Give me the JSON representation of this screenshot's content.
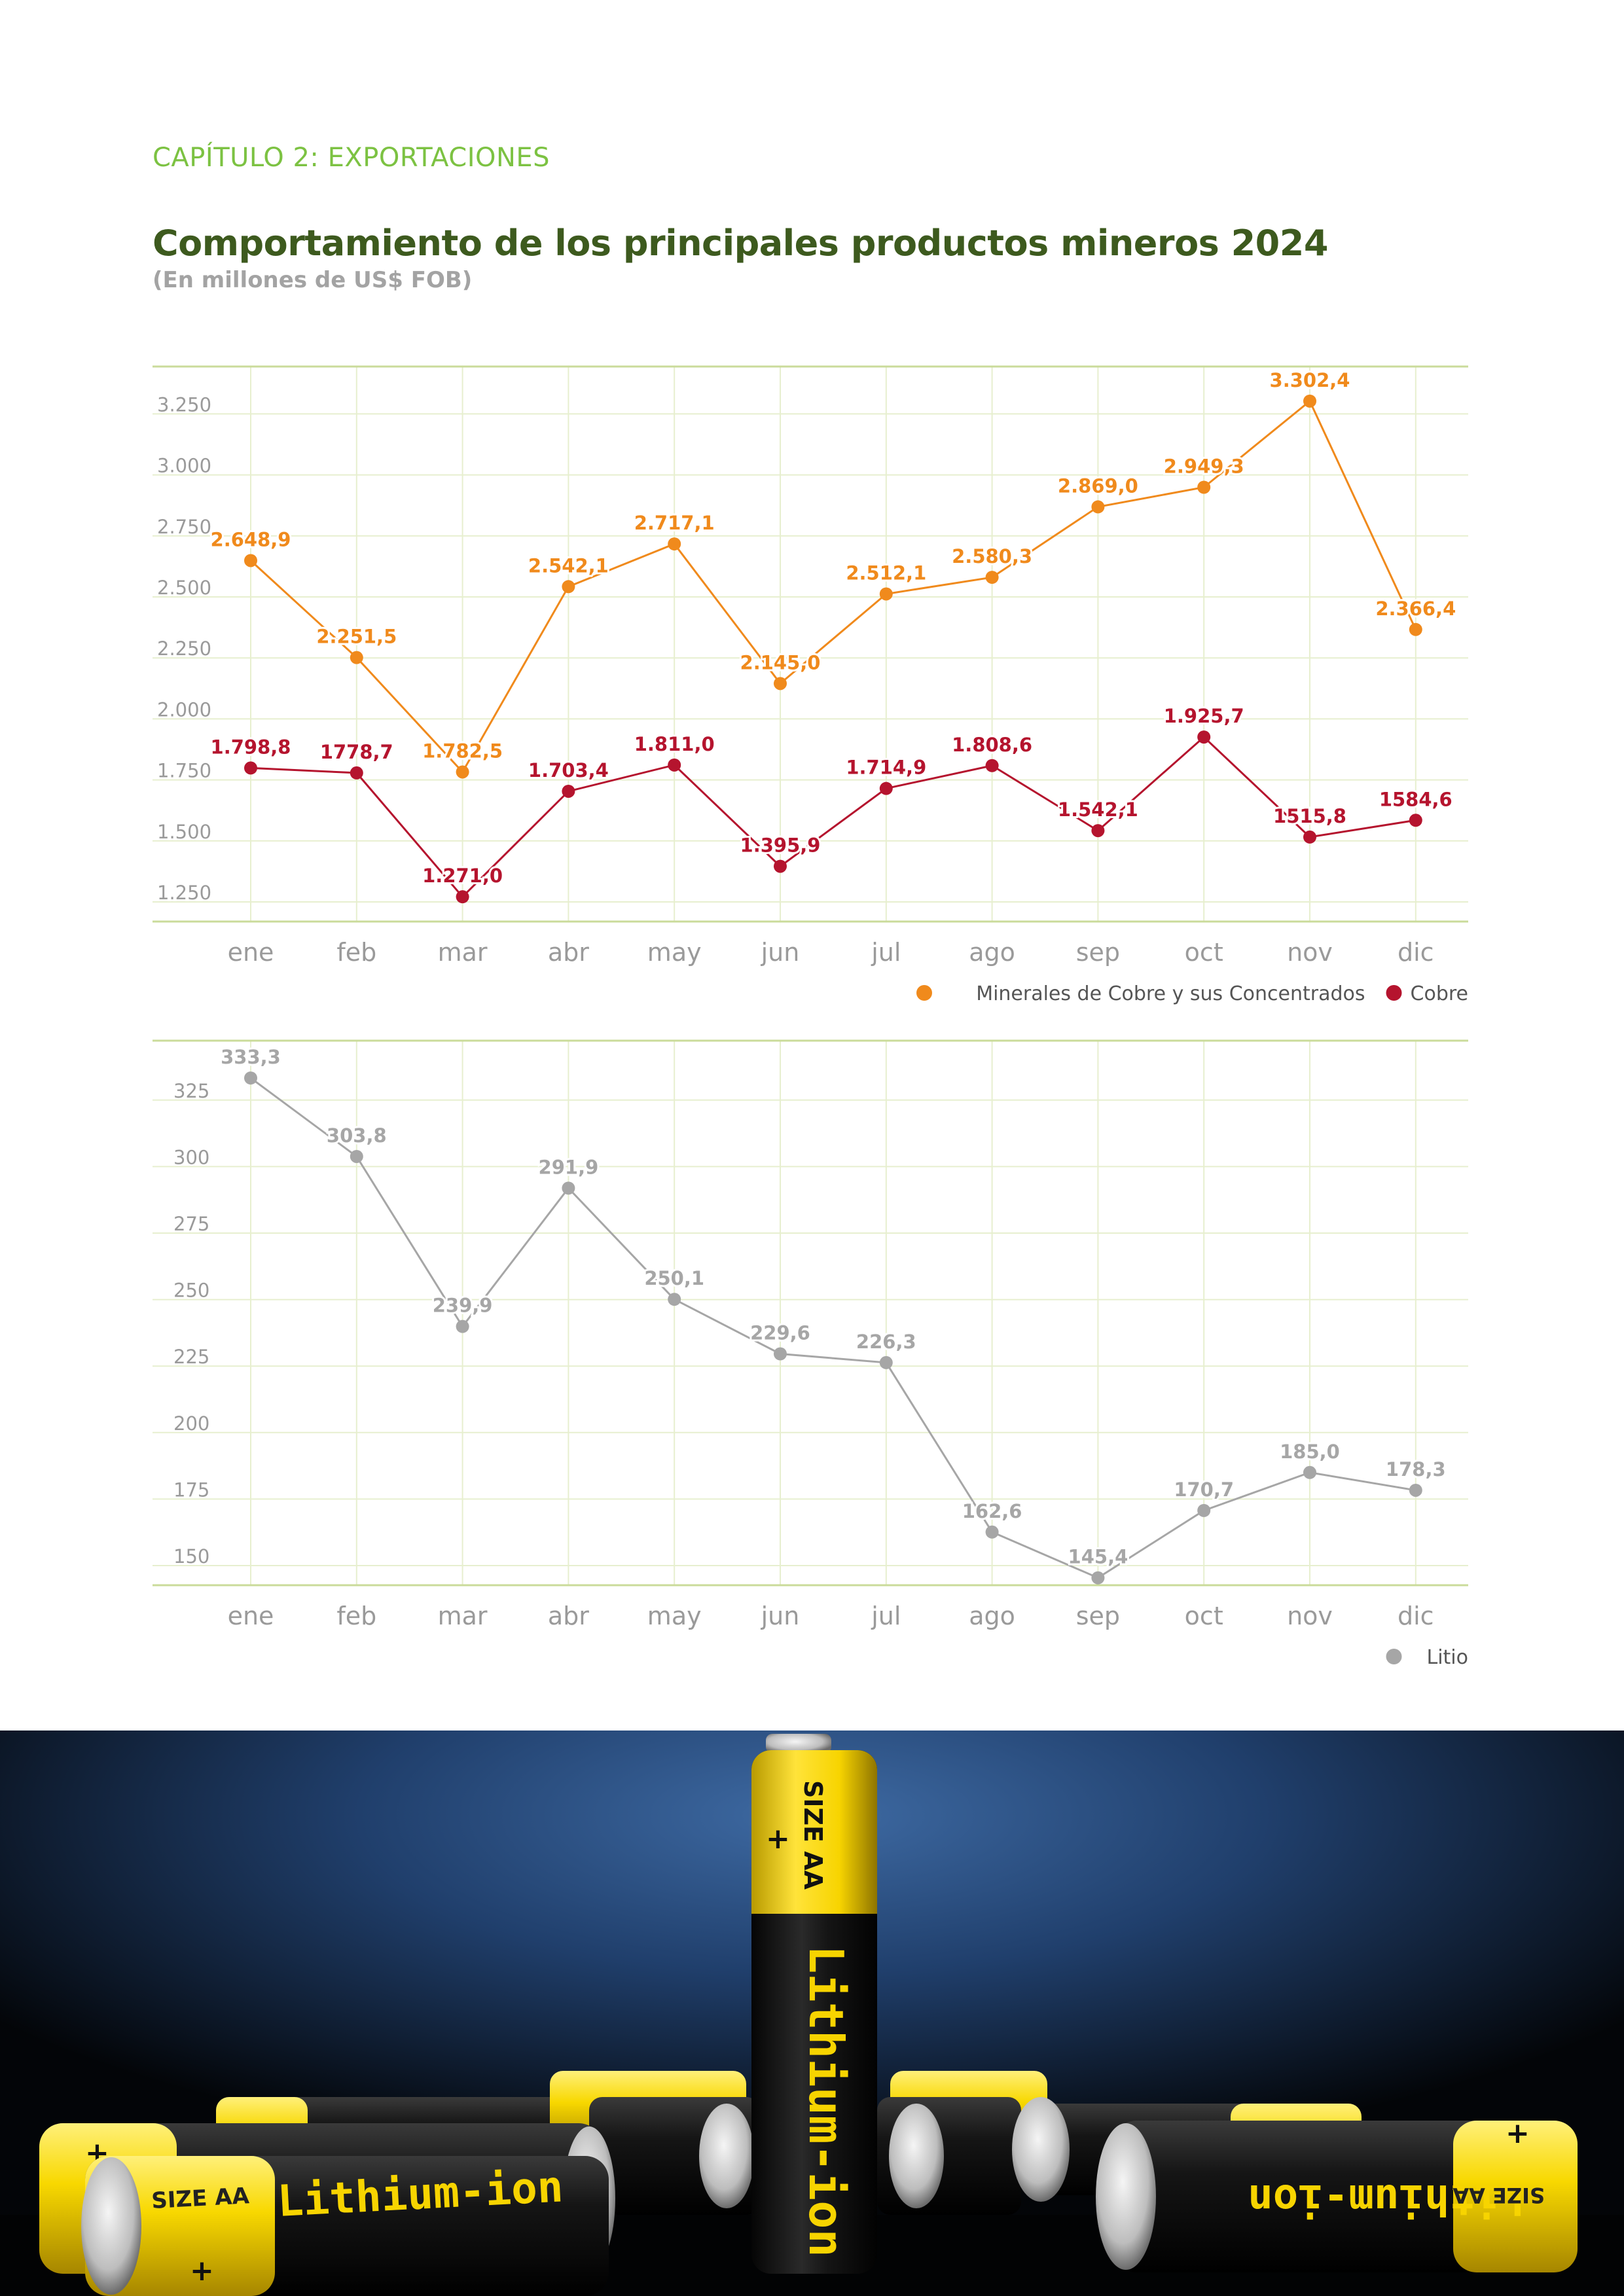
{
  "header": {
    "chapter": "CAPÍTULO 2: EXPORTACIONES",
    "title": "Comportamiento de los principales productos mineros 2024",
    "subtitle": "(En millones de US$ FOB)"
  },
  "colors": {
    "orange": "#f08a1c",
    "red": "#b5142e",
    "gray": "#a6a6a6",
    "grid": "#e7efcf",
    "axis": "#cadb9a"
  },
  "chart_data": [
    {
      "type": "line",
      "categories": [
        "ene",
        "feb",
        "mar",
        "abr",
        "may",
        "jun",
        "jul",
        "ago",
        "sep",
        "oct",
        "nov",
        "dic"
      ],
      "yticks": [
        "1.250",
        "1.500",
        "1.750",
        "2.000",
        "2.250",
        "2.500",
        "2.750",
        "3.000",
        "3.250"
      ],
      "ylim": [
        1175,
        3445
      ],
      "series": [
        {
          "name": "Minerales de Cobre y sus Concentrados",
          "color": "#f08a1c",
          "values": [
            2648.9,
            2251.5,
            1782.5,
            2542.1,
            2717.1,
            2145.0,
            2512.1,
            2580.3,
            2869.0,
            2949.3,
            3302.4,
            2366.4
          ],
          "labels": [
            "2.648,9",
            "2.251,5",
            "1.782,5",
            "2.542,1",
            "2.717,1",
            "2.145,0",
            "2.512,1",
            "2.580,3",
            "2.869,0",
            "2.949,3",
            "3.302,4",
            "2.366,4"
          ]
        },
        {
          "name": "Cobre",
          "color": "#b5142e",
          "values": [
            1798.8,
            1778.7,
            1271.0,
            1703.4,
            1811.0,
            1395.9,
            1714.9,
            1808.6,
            1542.1,
            1925.7,
            1515.8,
            1584.6
          ],
          "labels": [
            "1.798,8",
            "1778,7",
            "1.271,0",
            "1.703,4",
            "1.811,0",
            "1.395,9",
            "1.714,9",
            "1.808,6",
            "1.542,1",
            "1.925,7",
            "1515,8",
            "1584,6"
          ]
        }
      ],
      "legend": [
        "Minerales de Cobre y sus Concentrados",
        "Cobre"
      ],
      "legend_position": "bottom-right",
      "grid": true
    },
    {
      "type": "line",
      "categories": [
        "ene",
        "feb",
        "mar",
        "abr",
        "may",
        "jun",
        "jul",
        "ago",
        "sep",
        "oct",
        "nov",
        "dic"
      ],
      "yticks": [
        "150",
        "175",
        "200",
        "225",
        "250",
        "275",
        "300",
        "325"
      ],
      "ylim": [
        145,
        345
      ],
      "series": [
        {
          "name": "Litio",
          "color": "#a6a6a6",
          "values": [
            333.3,
            303.8,
            239.9,
            291.9,
            250.1,
            229.6,
            226.3,
            162.6,
            145.4,
            170.7,
            185.0,
            178.3
          ],
          "labels": [
            "333,3",
            "303,8",
            "239,9",
            "291,9",
            "250,1",
            "229,6",
            "226,3",
            "162,6",
            "145,4",
            "170,7",
            "185,0",
            "178,3"
          ]
        }
      ],
      "legend": [
        "Litio"
      ],
      "legend_position": "bottom-right",
      "grid": true
    }
  ],
  "photo": {
    "big_battery_size": "SIZE AA",
    "big_battery_brand": "Lithium-ion",
    "left_battery_size": "SIZE AA",
    "left_battery_brand": "Lithium-ion",
    "right_battery_size": "SIZE AA",
    "right_battery_brand": "Lithium-ion"
  }
}
